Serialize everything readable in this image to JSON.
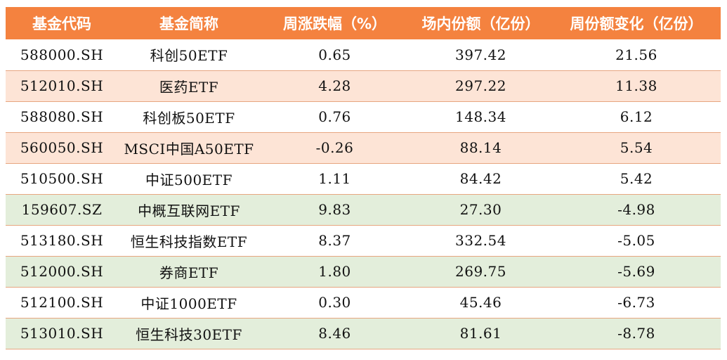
{
  "chart_data": {
    "type": "table",
    "header_color": "#f4823f",
    "row_colors": {
      "white": "#ffffff",
      "peach": "#fde4d6",
      "green": "#e3eedb"
    },
    "columns": [
      "基金代码",
      "基金简称",
      "周涨跌幅（%）",
      "场内份额（亿份）",
      "周份额变化（亿份）"
    ],
    "rows": [
      {
        "band": "white",
        "cells": [
          "588000.SH",
          "科创50ETF",
          "0.65",
          "397.42",
          "21.56"
        ]
      },
      {
        "band": "peach",
        "cells": [
          "512010.SH",
          "医药ETF",
          "4.28",
          "297.22",
          "11.38"
        ]
      },
      {
        "band": "white",
        "cells": [
          "588080.SH",
          "科创板50ETF",
          "0.76",
          "148.34",
          "6.12"
        ]
      },
      {
        "band": "peach",
        "cells": [
          "560050.SH",
          "MSCI中国A50ETF",
          "-0.26",
          "88.14",
          "5.54"
        ]
      },
      {
        "band": "white",
        "cells": [
          "510500.SH",
          "中证500ETF",
          "1.11",
          "84.42",
          "5.42"
        ]
      },
      {
        "band": "green",
        "cells": [
          "159607.SZ",
          "中概互联网ETF",
          "9.83",
          "27.30",
          "-4.98"
        ]
      },
      {
        "band": "white",
        "cells": [
          "513180.SH",
          "恒生科技指数ETF",
          "8.37",
          "332.54",
          "-5.05"
        ]
      },
      {
        "band": "green",
        "cells": [
          "512000.SH",
          "券商ETF",
          "1.80",
          "269.75",
          "-5.69"
        ]
      },
      {
        "band": "white",
        "cells": [
          "512100.SH",
          "中证1000ETF",
          "0.30",
          "45.46",
          "-6.73"
        ]
      },
      {
        "band": "green",
        "cells": [
          "513010.SH",
          "恒生科技30ETF",
          "8.46",
          "81.61",
          "-8.78"
        ]
      }
    ]
  }
}
